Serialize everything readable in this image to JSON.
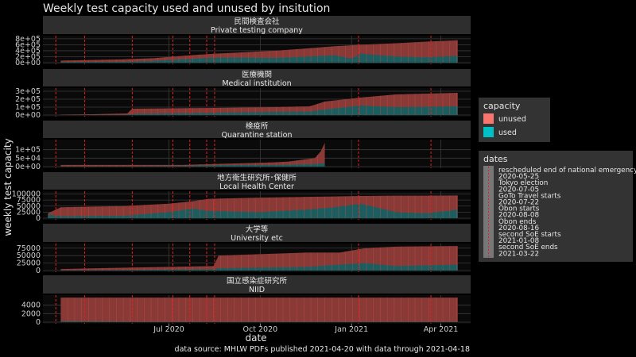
{
  "chart_data": {
    "type": "area",
    "title": "Weekly test capacity used and unused by insitution",
    "xlabel": "date",
    "ylabel": "weekly test capacity",
    "caption": "data source: MHLW PDFs published 2021-04-20 with data through 2021-04-18",
    "x_ticks": [
      "Jul 2020",
      "Oct 2020",
      "Jan 2021",
      "Apr 2021"
    ],
    "x_tick_dates": [
      "2020-07-01",
      "2020-10-01",
      "2021-01-01",
      "2021-04-01"
    ],
    "x_range": [
      "2020-02-25",
      "2021-05-01"
    ],
    "data_range": [
      "2020-03-14",
      "2021-04-18"
    ],
    "legend_capacity": {
      "title": "capacity",
      "items": [
        {
          "label": "unused",
          "color": "#F8766D"
        },
        {
          "label": "used",
          "color": "#00BFC4"
        }
      ]
    },
    "legend_dates": {
      "title": "dates",
      "items": [
        "rescheduled end of national emergency",
        "2020-05-25",
        "Tokyo election",
        "2020-07-05",
        "GoTo Travel starts",
        "2020-07-22",
        "Obon starts",
        "2020-08-08",
        "Obon ends",
        "2020-08-16",
        "second SoE starts",
        "2021-01-08",
        "second SoE ends",
        "2021-03-22"
      ]
    },
    "event_lines": [
      "2020-03-09",
      "2020-04-07",
      "2020-05-25",
      "2020-07-05",
      "2020-07-22",
      "2020-08-08",
      "2020-08-16",
      "2021-01-08",
      "2021-03-22"
    ],
    "panels": [
      {
        "label_ja": "民間検査会社",
        "label_en": "Private testing company",
        "y_ticks": [
          "0e+00",
          "2e+05",
          "4e+05",
          "6e+05",
          "8e+05"
        ],
        "y_max": 850000,
        "x": [
          "2020-03-14",
          "2020-04-15",
          "2020-05-15",
          "2020-06-15",
          "2020-07-15",
          "2020-08-15",
          "2020-09-15",
          "2020-10-15",
          "2020-11-15",
          "2020-12-15",
          "2021-01-01",
          "2021-01-10",
          "2021-02-15",
          "2021-03-15",
          "2021-04-18"
        ],
        "capacity": [
          70000,
          90000,
          110000,
          150000,
          230000,
          300000,
          350000,
          400000,
          470000,
          550000,
          580000,
          600000,
          650000,
          700000,
          750000
        ],
        "used": [
          20000,
          25000,
          30000,
          60000,
          120000,
          170000,
          170000,
          160000,
          200000,
          250000,
          140000,
          300000,
          210000,
          180000,
          230000
        ]
      },
      {
        "label_ja": "医療機関",
        "label_en": "Medical institution",
        "y_ticks": [
          "0e+00",
          "1e+05",
          "2e+05",
          "3e+05"
        ],
        "y_max": 320000,
        "x": [
          "2020-03-14",
          "2020-04-15",
          "2020-05-20",
          "2020-05-25",
          "2020-08-15",
          "2020-10-15",
          "2020-11-20",
          "2020-12-05",
          "2021-01-10",
          "2021-02-15",
          "2021-04-18"
        ],
        "capacity": [
          5000,
          10000,
          20000,
          80000,
          90000,
          100000,
          110000,
          170000,
          220000,
          260000,
          280000
        ],
        "used": [
          1000,
          2000,
          3000,
          15000,
          30000,
          40000,
          45000,
          70000,
          120000,
          100000,
          110000
        ]
      },
      {
        "label_ja": "検疫所",
        "label_en": "Quarantine station",
        "y_ticks": [
          "0e+00",
          "5e+04",
          "1e+05"
        ],
        "y_max": 150000,
        "x": [
          "2020-03-14",
          "2020-05-25",
          "2020-07-15",
          "2020-08-15",
          "2020-09-15",
          "2020-10-15",
          "2020-10-30",
          "2020-11-25",
          "2020-12-01",
          "2020-12-05"
        ],
        "capacity": [
          10000,
          10000,
          10000,
          15000,
          20000,
          25000,
          30000,
          50000,
          90000,
          140000
        ],
        "used": [
          1000,
          2000,
          4000,
          8000,
          10000,
          10000,
          12000,
          15000,
          18000,
          20000
        ]
      },
      {
        "label_ja": "地方衛生研究所･保健所",
        "label_en": "Local Health Center",
        "y_ticks": [
          "0",
          "25000",
          "50000",
          "75000",
          "100000"
        ],
        "y_max": 105000,
        "x": [
          "2020-03-01",
          "2020-03-14",
          "2020-05-15",
          "2020-07-01",
          "2020-07-25",
          "2020-08-10",
          "2020-10-01",
          "2020-11-15",
          "2020-12-15",
          "2021-01-10",
          "2021-02-15",
          "2021-03-15",
          "2021-04-18"
        ],
        "capacity": [
          20000,
          45000,
          50000,
          60000,
          70000,
          80000,
          85000,
          88000,
          90000,
          92000,
          93000,
          93000,
          94000
        ],
        "used": [
          15000,
          8000,
          10000,
          25000,
          40000,
          30000,
          25000,
          35000,
          45000,
          60000,
          25000,
          20000,
          35000
        ]
      },
      {
        "label_ja": "大学等",
        "label_en": "University etc",
        "y_ticks": [
          "0",
          "25000",
          "50000",
          "75000"
        ],
        "y_max": 85000,
        "x": [
          "2020-03-14",
          "2020-05-25",
          "2020-08-15",
          "2020-08-20",
          "2020-11-15",
          "2020-12-20",
          "2021-01-15",
          "2021-02-15",
          "2021-04-18"
        ],
        "capacity": [
          5000,
          10000,
          15000,
          50000,
          60000,
          60000,
          75000,
          80000,
          82000
        ],
        "used": [
          500,
          2000,
          5000,
          8000,
          12000,
          20000,
          25000,
          15000,
          20000
        ]
      },
      {
        "label_ja": "国立感染症研究所",
        "label_en": "NIID",
        "y_ticks": [
          "0",
          "2000",
          "4000"
        ],
        "y_max": 6000,
        "x": [
          "2020-03-14",
          "2020-06-01",
          "2020-09-01",
          "2020-12-01",
          "2021-03-01",
          "2021-04-18"
        ],
        "capacity": [
          5800,
          5800,
          5800,
          5800,
          5800,
          5800
        ],
        "used": [
          200,
          100,
          100,
          100,
          100,
          100
        ]
      }
    ]
  }
}
